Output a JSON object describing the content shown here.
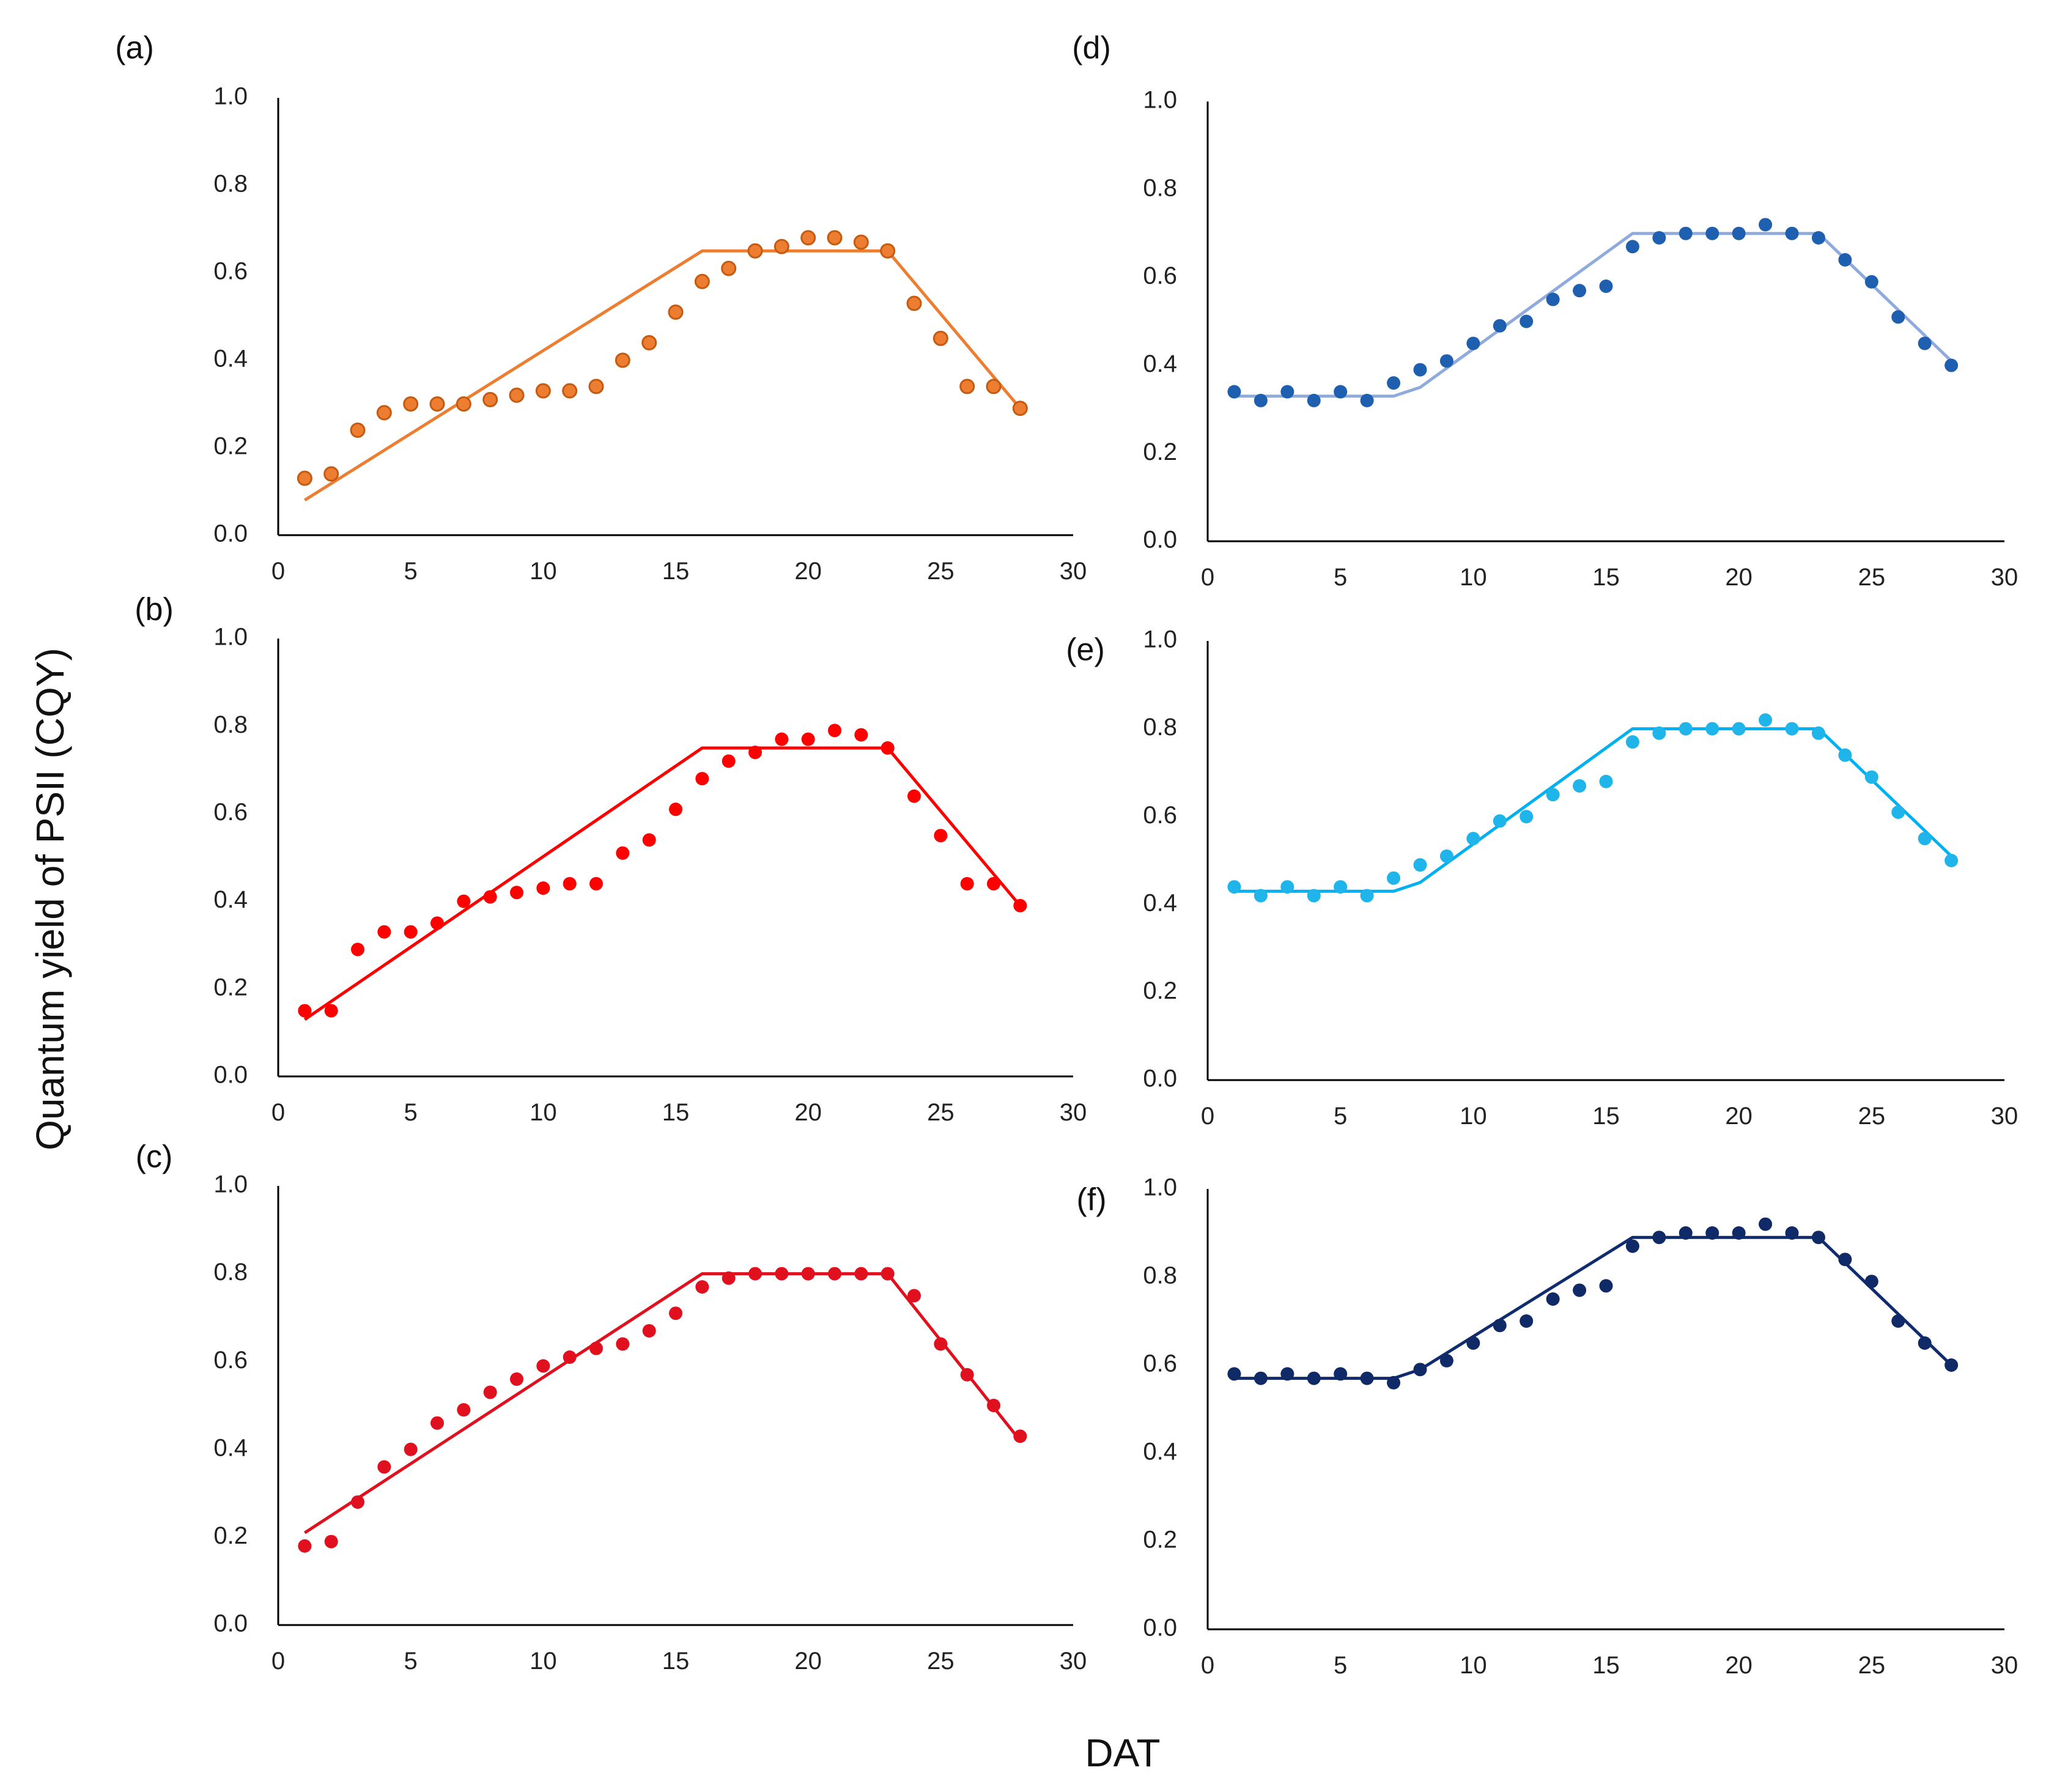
{
  "figure": {
    "ylabel": "Quantum yield of PSII (CQY)",
    "xlabel": "DAT"
  },
  "chart_data": [
    {
      "panel": "(a)",
      "type": "scatter",
      "color": "#ED7D31",
      "marker_edge": "#C55A11",
      "xlim": [
        0,
        30
      ],
      "ylim": [
        0,
        1.0
      ],
      "xticks": [
        "0",
        "5",
        "10",
        "15",
        "20",
        "25",
        "30"
      ],
      "yticks": [
        "0.0",
        "0.2",
        "0.4",
        "0.6",
        "0.8",
        "1.0"
      ],
      "series": [
        {
          "name": "observed",
          "x": [
            1,
            2,
            3,
            4,
            5,
            6,
            7,
            8,
            9,
            10,
            11,
            12,
            13,
            14,
            15,
            16,
            17,
            18,
            19,
            20,
            21,
            22,
            23,
            24,
            25,
            26,
            27,
            28
          ],
          "values": [
            0.13,
            0.14,
            0.24,
            0.28,
            0.3,
            0.3,
            0.3,
            0.31,
            0.32,
            0.33,
            0.33,
            0.34,
            0.4,
            0.44,
            0.51,
            0.58,
            0.61,
            0.65,
            0.66,
            0.68,
            0.68,
            0.67,
            0.65,
            0.53,
            0.45,
            0.34,
            0.34,
            0.29
          ]
        },
        {
          "name": "fit",
          "x": [
            1,
            16,
            23,
            28
          ],
          "values": [
            0.08,
            0.65,
            0.65,
            0.29
          ]
        }
      ]
    },
    {
      "panel": "(b)",
      "type": "scatter",
      "color": "#FF0000",
      "xlim": [
        0,
        30
      ],
      "ylim": [
        0,
        1.0
      ],
      "xticks": [
        "0",
        "5",
        "10",
        "15",
        "20",
        "25",
        "30"
      ],
      "yticks": [
        "0.0",
        "0.2",
        "0.4",
        "0.6",
        "0.8",
        "1.0"
      ],
      "series": [
        {
          "name": "observed",
          "x": [
            1,
            2,
            3,
            4,
            5,
            6,
            7,
            8,
            9,
            10,
            11,
            12,
            13,
            14,
            15,
            16,
            17,
            18,
            19,
            20,
            21,
            22,
            23,
            24,
            25,
            26,
            27,
            28
          ],
          "values": [
            0.15,
            0.15,
            0.29,
            0.33,
            0.33,
            0.35,
            0.4,
            0.41,
            0.42,
            0.43,
            0.44,
            0.44,
            0.51,
            0.54,
            0.61,
            0.68,
            0.72,
            0.74,
            0.77,
            0.77,
            0.79,
            0.78,
            0.75,
            0.64,
            0.55,
            0.44,
            0.44,
            0.39
          ]
        },
        {
          "name": "fit",
          "x": [
            1,
            16,
            23,
            28
          ],
          "values": [
            0.13,
            0.75,
            0.75,
            0.39
          ]
        }
      ]
    },
    {
      "panel": "(c)",
      "type": "scatter",
      "color": "#E0101E",
      "xlim": [
        0,
        30
      ],
      "ylim": [
        0,
        1.0
      ],
      "xticks": [
        "0",
        "5",
        "10",
        "15",
        "20",
        "25",
        "30"
      ],
      "yticks": [
        "0.0",
        "0.2",
        "0.4",
        "0.6",
        "0.8",
        "1.0"
      ],
      "series": [
        {
          "name": "observed",
          "x": [
            1,
            2,
            3,
            4,
            5,
            6,
            7,
            8,
            9,
            10,
            11,
            12,
            13,
            14,
            15,
            16,
            17,
            18,
            19,
            20,
            21,
            22,
            23,
            24,
            25,
            26,
            27,
            28
          ],
          "values": [
            0.18,
            0.19,
            0.28,
            0.36,
            0.4,
            0.46,
            0.49,
            0.53,
            0.56,
            0.59,
            0.61,
            0.63,
            0.64,
            0.67,
            0.71,
            0.77,
            0.79,
            0.8,
            0.8,
            0.8,
            0.8,
            0.8,
            0.8,
            0.75,
            0.64,
            0.57,
            0.5,
            0.43
          ]
        },
        {
          "name": "fit",
          "x": [
            1,
            16,
            23,
            28
          ],
          "values": [
            0.21,
            0.8,
            0.8,
            0.42
          ]
        }
      ]
    },
    {
      "panel": "(d)",
      "type": "scatter",
      "color": "#1F5FB0",
      "line_color": "#8FAADC",
      "xlim": [
        0,
        30
      ],
      "ylim": [
        0,
        1.0
      ],
      "xticks": [
        "0",
        "5",
        "10",
        "15",
        "20",
        "25",
        "30"
      ],
      "yticks": [
        "0.0",
        "0.2",
        "0.4",
        "0.6",
        "0.8",
        "1.0"
      ],
      "series": [
        {
          "name": "observed",
          "x": [
            1,
            2,
            3,
            4,
            5,
            6,
            7,
            8,
            9,
            10,
            11,
            12,
            13,
            14,
            15,
            16,
            17,
            18,
            19,
            20,
            21,
            22,
            23,
            24,
            25,
            26,
            27,
            28
          ],
          "values": [
            0.34,
            0.32,
            0.34,
            0.32,
            0.34,
            0.32,
            0.36,
            0.39,
            0.41,
            0.45,
            0.49,
            0.5,
            0.55,
            0.57,
            0.58,
            0.67,
            0.69,
            0.7,
            0.7,
            0.7,
            0.72,
            0.7,
            0.69,
            0.64,
            0.59,
            0.51,
            0.45,
            0.4
          ]
        },
        {
          "name": "fit",
          "x": [
            1,
            7,
            8,
            16,
            23,
            28
          ],
          "values": [
            0.33,
            0.33,
            0.35,
            0.7,
            0.7,
            0.41
          ]
        }
      ]
    },
    {
      "panel": "(e)",
      "type": "scatter",
      "color": "#1FB5EA",
      "line_color": "#00B0F0",
      "xlim": [
        0,
        30
      ],
      "ylim": [
        0,
        1.0
      ],
      "xticks": [
        "0",
        "5",
        "10",
        "15",
        "20",
        "25",
        "30"
      ],
      "yticks": [
        "0.0",
        "0.2",
        "0.4",
        "0.6",
        "0.8",
        "1.0"
      ],
      "series": [
        {
          "name": "observed",
          "x": [
            1,
            2,
            3,
            4,
            5,
            6,
            7,
            8,
            9,
            10,
            11,
            12,
            13,
            14,
            15,
            16,
            17,
            18,
            19,
            20,
            21,
            22,
            23,
            24,
            25,
            26,
            27,
            28
          ],
          "values": [
            0.44,
            0.42,
            0.44,
            0.42,
            0.44,
            0.42,
            0.46,
            0.49,
            0.51,
            0.55,
            0.59,
            0.6,
            0.65,
            0.67,
            0.68,
            0.77,
            0.79,
            0.8,
            0.8,
            0.8,
            0.82,
            0.8,
            0.79,
            0.74,
            0.69,
            0.61,
            0.55,
            0.5
          ]
        },
        {
          "name": "fit",
          "x": [
            1,
            7,
            8,
            16,
            23,
            28
          ],
          "values": [
            0.43,
            0.43,
            0.45,
            0.8,
            0.8,
            0.51
          ]
        }
      ]
    },
    {
      "panel": "(f)",
      "type": "scatter",
      "color": "#0F2A66",
      "line_color": "#102C6E",
      "xlim": [
        0,
        30
      ],
      "ylim": [
        0,
        1.0
      ],
      "xticks": [
        "0",
        "5",
        "10",
        "15",
        "20",
        "25",
        "30"
      ],
      "yticks": [
        "0.0",
        "0.2",
        "0.4",
        "0.6",
        "0.8",
        "1.0"
      ],
      "series": [
        {
          "name": "observed",
          "x": [
            1,
            2,
            3,
            4,
            5,
            6,
            7,
            8,
            9,
            10,
            11,
            12,
            13,
            14,
            15,
            16,
            17,
            18,
            19,
            20,
            21,
            22,
            23,
            24,
            25,
            26,
            27,
            28
          ],
          "values": [
            0.58,
            0.57,
            0.58,
            0.57,
            0.58,
            0.57,
            0.56,
            0.59,
            0.61,
            0.65,
            0.69,
            0.7,
            0.75,
            0.77,
            0.78,
            0.87,
            0.89,
            0.9,
            0.9,
            0.9,
            0.92,
            0.9,
            0.89,
            0.84,
            0.79,
            0.7,
            0.65,
            0.6
          ]
        },
        {
          "name": "fit",
          "x": [
            1,
            7,
            8,
            16,
            23,
            28
          ],
          "values": [
            0.57,
            0.57,
            0.59,
            0.89,
            0.89,
            0.6
          ]
        }
      ]
    }
  ]
}
